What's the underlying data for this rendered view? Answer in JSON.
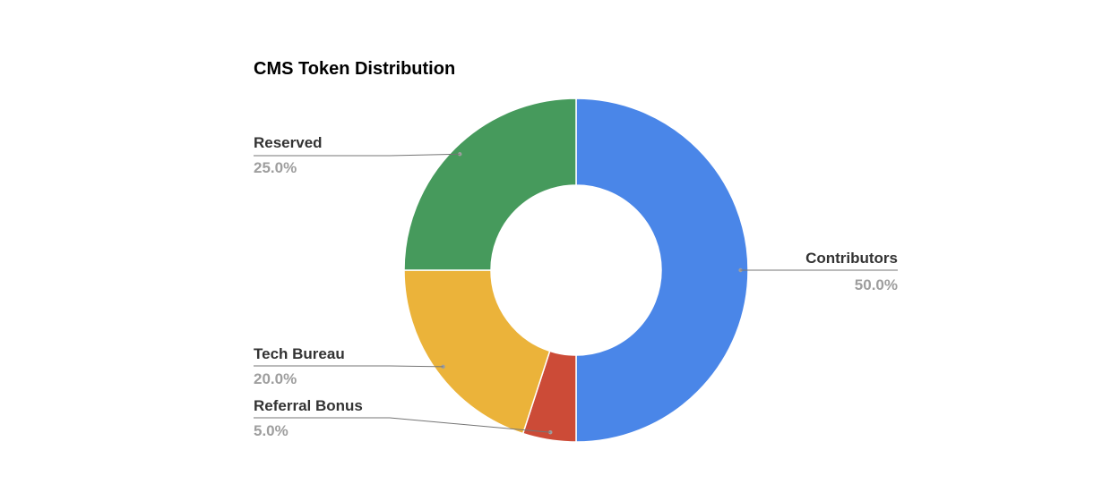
{
  "chart_data": {
    "type": "pie",
    "title": "CMS Token Distribution",
    "donut": true,
    "slices": [
      {
        "label": "Contributors",
        "value": 50.0,
        "percent_label": "50.0%",
        "color": "#4a86e8"
      },
      {
        "label": "Referral Bonus",
        "value": 5.0,
        "percent_label": "5.0%",
        "color": "#cc4b37"
      },
      {
        "label": "Tech Bureau",
        "value": 20.0,
        "percent_label": "20.0%",
        "color": "#ebb33a"
      },
      {
        "label": "Reserved",
        "value": 25.0,
        "percent_label": "25.0%",
        "color": "#469a5c"
      }
    ]
  }
}
